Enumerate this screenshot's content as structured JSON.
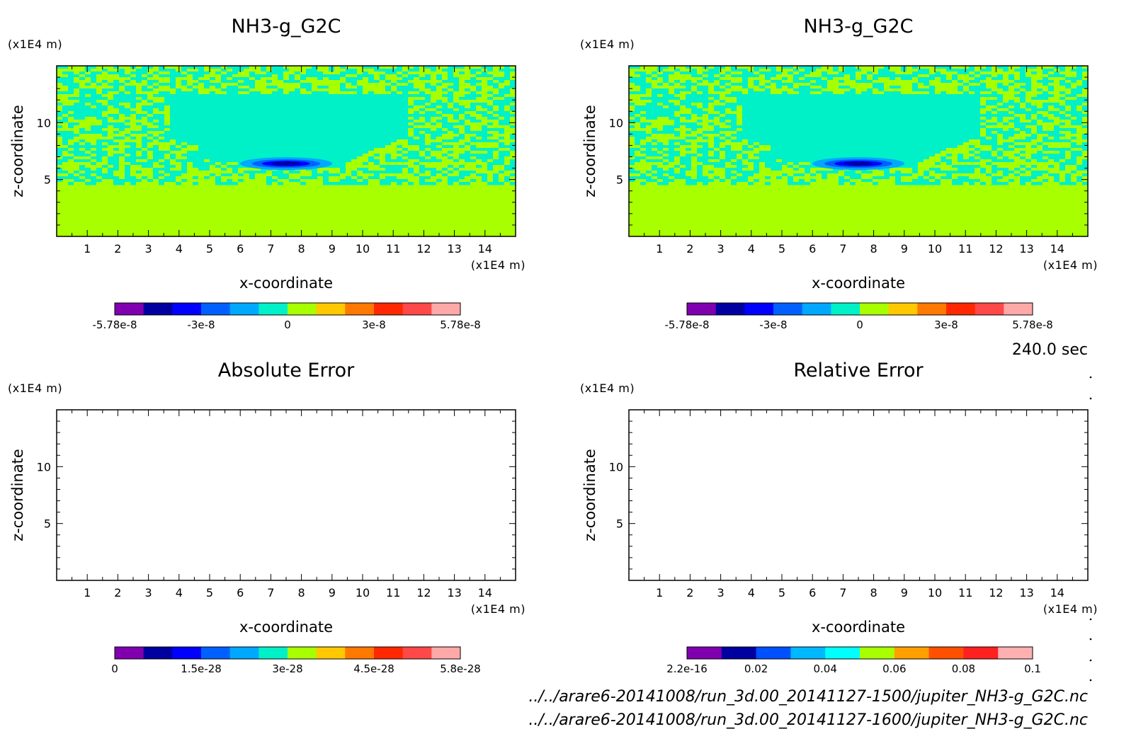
{
  "time_label": "240.0 sec",
  "file_paths": [
    "../../arare6-20141008/run_3d.00_20141127-1500/jupiter_NH3-g_G2C.nc",
    "../../arare6-20141008/run_3d.00_20141127-1600/jupiter_NH3-g_G2C.nc"
  ],
  "chart_data": [
    {
      "type": "heatmap",
      "title": "NH3-g_G2C",
      "xlabel": "x-coordinate",
      "ylabel": "z-coordinate",
      "x_unit": "(x1E4 m)",
      "y_unit": "(x1E4 m)",
      "xlim": [
        0,
        15
      ],
      "ylim": [
        0,
        15
      ],
      "x_ticks": [
        "1",
        "2",
        "3",
        "4",
        "5",
        "6",
        "7",
        "8",
        "9",
        "10",
        "11",
        "12",
        "13",
        "14"
      ],
      "y_ticks": [
        "5",
        "10"
      ],
      "field": "perturbation pattern with dominant near-zero values; strong negative anomaly near x=7.5, z=6.5",
      "colorbar": {
        "min": -5.78e-08,
        "max": 5.78e-08,
        "tick_labels": [
          "-5.78e-8",
          "-3e-8",
          "0",
          "3e-8",
          "5.78e-8"
        ],
        "colors": [
          "#8000b0",
          "#0000a0",
          "#0000ff",
          "#0060ff",
          "#00a8ff",
          "#00f0c8",
          "#a8ff00",
          "#ffc800",
          "#ff7800",
          "#ff2800",
          "#ff4848",
          "#ffa8a8"
        ]
      }
    },
    {
      "type": "heatmap",
      "title": "NH3-g_G2C",
      "xlabel": "x-coordinate",
      "ylabel": "z-coordinate",
      "x_unit": "(x1E4 m)",
      "y_unit": "(x1E4 m)",
      "xlim": [
        0,
        15
      ],
      "ylim": [
        0,
        15
      ],
      "x_ticks": [
        "1",
        "2",
        "3",
        "4",
        "5",
        "6",
        "7",
        "8",
        "9",
        "10",
        "11",
        "12",
        "13",
        "14"
      ],
      "y_ticks": [
        "5",
        "10"
      ],
      "colorbar": {
        "min": -5.78e-08,
        "max": 5.78e-08,
        "tick_labels": [
          "-5.78e-8",
          "-3e-8",
          "0",
          "3e-8",
          "5.78e-8"
        ],
        "colors": [
          "#8000b0",
          "#0000a0",
          "#0000ff",
          "#0060ff",
          "#00a8ff",
          "#00f0c8",
          "#a8ff00",
          "#ffc800",
          "#ff7800",
          "#ff2800",
          "#ff4848",
          "#ffa8a8"
        ]
      }
    },
    {
      "type": "heatmap",
      "title": "Absolute Error",
      "xlabel": "x-coordinate",
      "ylabel": "z-coordinate",
      "x_unit": "(x1E4 m)",
      "y_unit": "(x1E4 m)",
      "xlim": [
        0,
        15
      ],
      "ylim": [
        0,
        15
      ],
      "x_ticks": [
        "1",
        "2",
        "3",
        "4",
        "5",
        "6",
        "7",
        "8",
        "9",
        "10",
        "11",
        "12",
        "13",
        "14"
      ],
      "y_ticks": [
        "5",
        "10"
      ],
      "field": "empty",
      "colorbar": {
        "min": 0,
        "max": 5.8e-28,
        "tick_labels": [
          "0",
          "1.5e-28",
          "3e-28",
          "4.5e-28",
          "5.8e-28"
        ],
        "colors": [
          "#8000b0",
          "#0000a0",
          "#0000ff",
          "#0060ff",
          "#00a8ff",
          "#00f0c8",
          "#a8ff00",
          "#ffc800",
          "#ff7800",
          "#ff2800",
          "#ff4848",
          "#ffa8a8"
        ]
      }
    },
    {
      "type": "heatmap",
      "title": "Relative Error",
      "xlabel": "x-coordinate",
      "ylabel": "z-coordinate",
      "x_unit": "(x1E4 m)",
      "y_unit": "(x1E4 m)",
      "xlim": [
        0,
        15
      ],
      "ylim": [
        0,
        15
      ],
      "x_ticks": [
        "1",
        "2",
        "3",
        "4",
        "5",
        "6",
        "7",
        "8",
        "9",
        "10",
        "11",
        "12",
        "13",
        "14"
      ],
      "y_ticks": [
        "5",
        "10"
      ],
      "field": "empty",
      "colorbar": {
        "min": 2.2e-16,
        "max": 0.1,
        "tick_labels": [
          "2.2e-16",
          "0.02",
          "0.04",
          "0.06",
          "0.08",
          "0.1"
        ],
        "colors": [
          "#8000b0",
          "#0000a0",
          "#0050ff",
          "#00b8ff",
          "#00ffff",
          "#a8ff00",
          "#ffa000",
          "#ff5000",
          "#ff2020",
          "#ffb0b0"
        ]
      }
    }
  ]
}
